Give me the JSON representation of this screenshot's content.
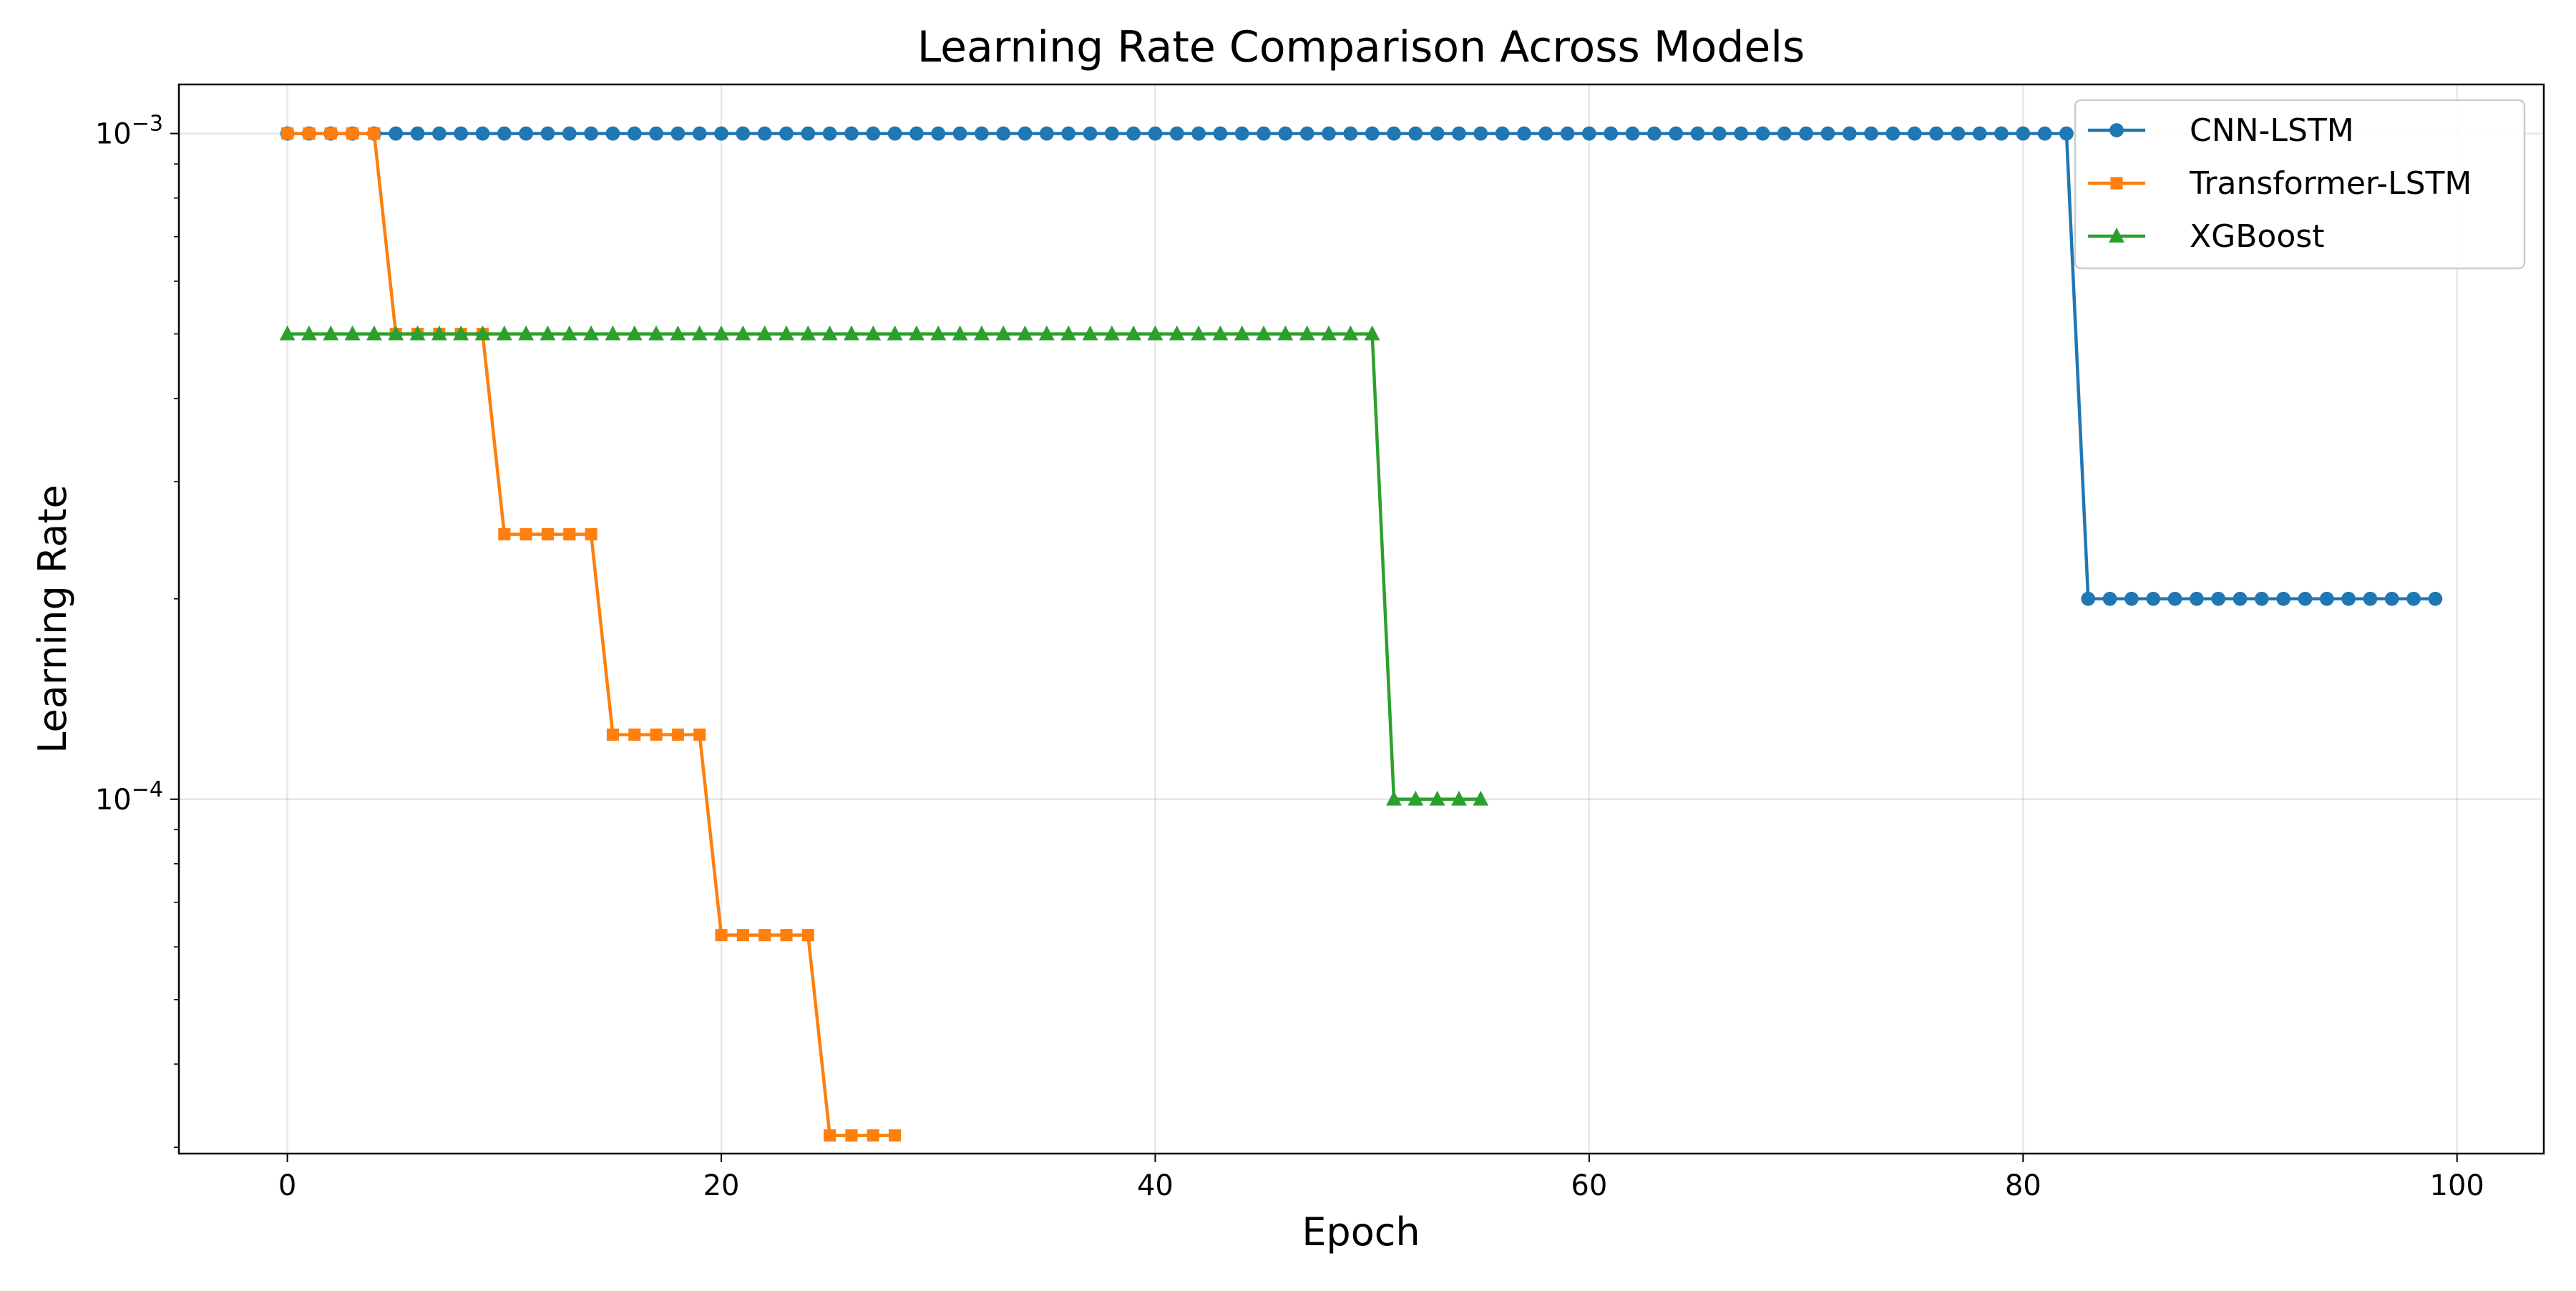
{
  "chart_data": {
    "type": "line",
    "title": "Learning Rate Comparison Across Models",
    "xlabel": "Epoch",
    "ylabel": "Learning Rate",
    "xlim": [
      -5,
      104
    ],
    "ylim": [
      2.935e-05,
      0.001185
    ],
    "yscale": "log",
    "grid": true,
    "legend_position": "top-right",
    "x_ticks": [
      {
        "value": 0,
        "label": "0"
      },
      {
        "value": 20,
        "label": "20"
      },
      {
        "value": 40,
        "label": "40"
      },
      {
        "value": 60,
        "label": "60"
      },
      {
        "value": 80,
        "label": "80"
      },
      {
        "value": 100,
        "label": "100"
      }
    ],
    "y_ticks": [
      {
        "value": 0.001,
        "base": "10",
        "exponent": "−3"
      },
      {
        "value": 0.0001,
        "base": "10",
        "exponent": "−4"
      }
    ],
    "series": [
      {
        "name": "CNN-LSTM",
        "color": "#1f77b4",
        "marker": "circle",
        "x": [
          0,
          1,
          2,
          3,
          4,
          5,
          6,
          7,
          8,
          9,
          10,
          11,
          12,
          13,
          14,
          15,
          16,
          17,
          18,
          19,
          20,
          21,
          22,
          23,
          24,
          25,
          26,
          27,
          28,
          29,
          30,
          31,
          32,
          33,
          34,
          35,
          36,
          37,
          38,
          39,
          40,
          41,
          42,
          43,
          44,
          45,
          46,
          47,
          48,
          49,
          50,
          51,
          52,
          53,
          54,
          55,
          56,
          57,
          58,
          59,
          60,
          61,
          62,
          63,
          64,
          65,
          66,
          67,
          68,
          69,
          70,
          71,
          72,
          73,
          74,
          75,
          76,
          77,
          78,
          79,
          80,
          81,
          82,
          83,
          84,
          85,
          86,
          87,
          88,
          89,
          90,
          91,
          92,
          93,
          94,
          95,
          96,
          97,
          98,
          99
        ],
        "y": [
          0.001,
          0.001,
          0.001,
          0.001,
          0.001,
          0.001,
          0.001,
          0.001,
          0.001,
          0.001,
          0.001,
          0.001,
          0.001,
          0.001,
          0.001,
          0.001,
          0.001,
          0.001,
          0.001,
          0.001,
          0.001,
          0.001,
          0.001,
          0.001,
          0.001,
          0.001,
          0.001,
          0.001,
          0.001,
          0.001,
          0.001,
          0.001,
          0.001,
          0.001,
          0.001,
          0.001,
          0.001,
          0.001,
          0.001,
          0.001,
          0.001,
          0.001,
          0.001,
          0.001,
          0.001,
          0.001,
          0.001,
          0.001,
          0.001,
          0.001,
          0.001,
          0.001,
          0.001,
          0.001,
          0.001,
          0.001,
          0.001,
          0.001,
          0.001,
          0.001,
          0.001,
          0.001,
          0.001,
          0.001,
          0.001,
          0.001,
          0.001,
          0.001,
          0.001,
          0.001,
          0.001,
          0.001,
          0.001,
          0.001,
          0.001,
          0.001,
          0.001,
          0.001,
          0.001,
          0.001,
          0.001,
          0.001,
          0.001,
          0.0002,
          0.0002,
          0.0002,
          0.0002,
          0.0002,
          0.0002,
          0.0002,
          0.0002,
          0.0002,
          0.0002,
          0.0002,
          0.0002,
          0.0002,
          0.0002,
          0.0002,
          0.0002,
          0.0002
        ]
      },
      {
        "name": "Transformer-LSTM",
        "color": "#ff7f0e",
        "marker": "square",
        "x": [
          0,
          1,
          2,
          3,
          4,
          5,
          6,
          7,
          8,
          9,
          10,
          11,
          12,
          13,
          14,
          15,
          16,
          17,
          18,
          19,
          20,
          21,
          22,
          23,
          24,
          25,
          26,
          27,
          28
        ],
        "y": [
          0.001,
          0.001,
          0.001,
          0.001,
          0.001,
          0.0005,
          0.0005,
          0.0005,
          0.0005,
          0.0005,
          0.00025,
          0.00025,
          0.00025,
          0.00025,
          0.00025,
          0.000125,
          0.000125,
          0.000125,
          0.000125,
          0.000125,
          6.25e-05,
          6.25e-05,
          6.25e-05,
          6.25e-05,
          6.25e-05,
          3.125e-05,
          3.125e-05,
          3.125e-05,
          3.125e-05
        ]
      },
      {
        "name": "XGBoost",
        "color": "#2ca02c",
        "marker": "triangle",
        "x": [
          0,
          1,
          2,
          3,
          4,
          5,
          6,
          7,
          8,
          9,
          10,
          11,
          12,
          13,
          14,
          15,
          16,
          17,
          18,
          19,
          20,
          21,
          22,
          23,
          24,
          25,
          26,
          27,
          28,
          29,
          30,
          31,
          32,
          33,
          34,
          35,
          36,
          37,
          38,
          39,
          40,
          41,
          42,
          43,
          44,
          45,
          46,
          47,
          48,
          49,
          50,
          51,
          52,
          53,
          54,
          55
        ],
        "y": [
          0.0005,
          0.0005,
          0.0005,
          0.0005,
          0.0005,
          0.0005,
          0.0005,
          0.0005,
          0.0005,
          0.0005,
          0.0005,
          0.0005,
          0.0005,
          0.0005,
          0.0005,
          0.0005,
          0.0005,
          0.0005,
          0.0005,
          0.0005,
          0.0005,
          0.0005,
          0.0005,
          0.0005,
          0.0005,
          0.0005,
          0.0005,
          0.0005,
          0.0005,
          0.0005,
          0.0005,
          0.0005,
          0.0005,
          0.0005,
          0.0005,
          0.0005,
          0.0005,
          0.0005,
          0.0005,
          0.0005,
          0.0005,
          0.0005,
          0.0005,
          0.0005,
          0.0005,
          0.0005,
          0.0005,
          0.0005,
          0.0005,
          0.0005,
          0.0005,
          0.0001,
          0.0001,
          0.0001,
          0.0001,
          0.0001
        ]
      }
    ]
  }
}
